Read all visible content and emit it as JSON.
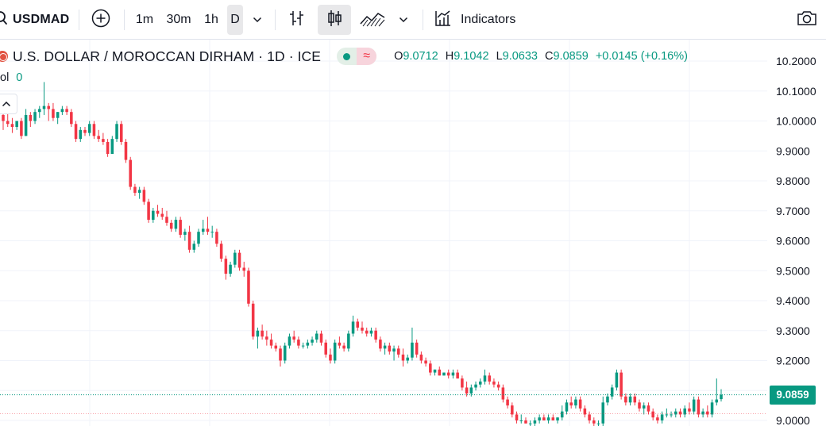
{
  "toolbar": {
    "symbol": "USDMAD",
    "intervals": [
      "1m",
      "30m",
      "1h",
      "D"
    ],
    "active_interval": "D",
    "indicators_label": "Indicators"
  },
  "legend": {
    "title": "U.S. DOLLAR / MOROCCAN DIRHAM · 1D · ICE",
    "status_icon": "≈",
    "open_key": "O",
    "open": "9.0712",
    "high_key": "H",
    "high": "9.1042",
    "low_key": "L",
    "low": "9.0633",
    "close_key": "C",
    "close": "9.0859",
    "change": "+0.0145 (+0.16%)",
    "volume_label": "ol",
    "volume_value": "0"
  },
  "colors": {
    "up": "#089981",
    "down": "#f23645",
    "grid": "#f0f3fa",
    "accent": "#2962ff"
  },
  "price_axis": {
    "last_price_label": "9.0859",
    "ticks": [
      "10.2000",
      "10.1000",
      "10.0000",
      "9.9000",
      "9.8000",
      "9.7000",
      "9.6000",
      "9.5000",
      "9.4000",
      "9.3000",
      "9.2000",
      "9.1000",
      "9.0000"
    ]
  },
  "chart_data": {
    "type": "candlestick",
    "y_range": [
      9.0,
      10.2
    ],
    "last_price": 9.0859,
    "candles": [
      [
        10.02,
        10.04,
        9.97,
        10.0
      ],
      [
        10.0,
        10.03,
        9.98,
        9.99
      ],
      [
        9.99,
        10.01,
        9.96,
        9.98
      ],
      [
        9.98,
        10.0,
        9.97,
        10.0
      ],
      [
        10.0,
        10.01,
        9.94,
        9.95
      ],
      [
        9.95,
        10.04,
        9.95,
        10.02
      ],
      [
        10.02,
        10.03,
        9.98,
        10.0
      ],
      [
        10.0,
        10.04,
        9.99,
        10.03
      ],
      [
        10.03,
        10.05,
        10.01,
        10.04
      ],
      [
        10.04,
        10.13,
        10.02,
        10.05
      ],
      [
        10.05,
        10.06,
        10.0,
        10.04
      ],
      [
        10.04,
        10.06,
        10.0,
        10.01
      ],
      [
        10.01,
        10.03,
        9.99,
        10.03
      ],
      [
        10.03,
        10.05,
        10.02,
        10.04
      ],
      [
        10.04,
        10.05,
        10.02,
        10.03
      ],
      [
        10.03,
        10.04,
        9.98,
        9.99
      ],
      [
        9.99,
        10.0,
        9.93,
        9.94
      ],
      [
        9.94,
        9.98,
        9.93,
        9.97
      ],
      [
        9.97,
        9.98,
        9.95,
        9.96
      ],
      [
        9.96,
        10.0,
        9.95,
        9.99
      ],
      [
        9.99,
        10.0,
        9.94,
        9.95
      ],
      [
        9.95,
        9.97,
        9.93,
        9.94
      ],
      [
        9.94,
        9.96,
        9.92,
        9.93
      ],
      [
        9.93,
        9.94,
        9.88,
        9.89
      ],
      [
        9.89,
        9.95,
        9.89,
        9.94
      ],
      [
        9.94,
        10.0,
        9.93,
        9.99
      ],
      [
        9.99,
        10.0,
        9.92,
        9.93
      ],
      [
        9.93,
        9.94,
        9.86,
        9.87
      ],
      [
        9.87,
        9.88,
        9.77,
        9.78
      ],
      [
        9.78,
        9.79,
        9.75,
        9.76
      ],
      [
        9.76,
        9.78,
        9.74,
        9.77
      ],
      [
        9.77,
        9.78,
        9.72,
        9.73
      ],
      [
        9.73,
        9.74,
        9.66,
        9.67
      ],
      [
        9.67,
        9.71,
        9.66,
        9.7
      ],
      [
        9.7,
        9.72,
        9.68,
        9.69
      ],
      [
        9.69,
        9.71,
        9.67,
        9.68
      ],
      [
        9.68,
        9.7,
        9.65,
        9.66
      ],
      [
        9.66,
        9.67,
        9.63,
        9.64
      ],
      [
        9.64,
        9.68,
        9.63,
        9.67
      ],
      [
        9.67,
        9.68,
        9.61,
        9.62
      ],
      [
        9.62,
        9.64,
        9.6,
        9.63
      ],
      [
        9.63,
        9.65,
        9.56,
        9.57
      ],
      [
        9.57,
        9.6,
        9.56,
        9.59
      ],
      [
        9.59,
        9.64,
        9.58,
        9.63
      ],
      [
        9.63,
        9.67,
        9.62,
        9.64
      ],
      [
        9.64,
        9.68,
        9.62,
        9.63
      ],
      [
        9.63,
        9.65,
        9.61,
        9.63
      ],
      [
        9.63,
        9.64,
        9.58,
        9.59
      ],
      [
        9.59,
        9.6,
        9.53,
        9.54
      ],
      [
        9.54,
        9.55,
        9.47,
        9.49
      ],
      [
        9.49,
        9.53,
        9.48,
        9.52
      ],
      [
        9.52,
        9.57,
        9.51,
        9.56
      ],
      [
        9.56,
        9.57,
        9.5,
        9.51
      ],
      [
        9.51,
        9.53,
        9.48,
        9.5
      ],
      [
        9.5,
        9.51,
        9.38,
        9.39
      ],
      [
        9.39,
        9.4,
        9.27,
        9.28
      ],
      [
        9.28,
        9.31,
        9.24,
        9.3
      ],
      [
        9.3,
        9.32,
        9.27,
        9.28
      ],
      [
        9.28,
        9.3,
        9.25,
        9.27
      ],
      [
        9.27,
        9.29,
        9.24,
        9.25
      ],
      [
        9.25,
        9.26,
        9.23,
        9.24
      ],
      [
        9.24,
        9.25,
        9.18,
        9.2
      ],
      [
        9.2,
        9.26,
        9.19,
        9.25
      ],
      [
        9.25,
        9.29,
        9.24,
        9.28
      ],
      [
        9.28,
        9.3,
        9.26,
        9.27
      ],
      [
        9.27,
        9.28,
        9.24,
        9.25
      ],
      [
        9.25,
        9.26,
        9.24,
        9.25
      ],
      [
        9.25,
        9.27,
        9.24,
        9.26
      ],
      [
        9.26,
        9.28,
        9.25,
        9.27
      ],
      [
        9.27,
        9.3,
        9.26,
        9.29
      ],
      [
        9.29,
        9.3,
        9.25,
        9.26
      ],
      [
        9.26,
        9.27,
        9.21,
        9.22
      ],
      [
        9.22,
        9.24,
        9.19,
        9.2
      ],
      [
        9.2,
        9.27,
        9.19,
        9.26
      ],
      [
        9.26,
        9.28,
        9.24,
        9.25
      ],
      [
        9.25,
        9.26,
        9.23,
        9.24
      ],
      [
        9.24,
        9.3,
        9.23,
        9.29
      ],
      [
        9.29,
        9.35,
        9.28,
        9.33
      ],
      [
        9.33,
        9.34,
        9.3,
        9.31
      ],
      [
        9.31,
        9.33,
        9.29,
        9.3
      ],
      [
        9.3,
        9.31,
        9.28,
        9.29
      ],
      [
        9.29,
        9.31,
        9.28,
        9.3
      ],
      [
        9.3,
        9.31,
        9.26,
        9.27
      ],
      [
        9.27,
        9.28,
        9.23,
        9.24
      ],
      [
        9.24,
        9.26,
        9.22,
        9.25
      ],
      [
        9.25,
        9.26,
        9.22,
        9.23
      ],
      [
        9.23,
        9.25,
        9.2,
        9.24
      ],
      [
        9.24,
        9.25,
        9.21,
        9.22
      ],
      [
        9.22,
        9.24,
        9.18,
        9.2
      ],
      [
        9.2,
        9.22,
        9.19,
        9.21
      ],
      [
        9.21,
        9.31,
        9.2,
        9.26
      ],
      [
        9.26,
        9.27,
        9.21,
        9.22
      ],
      [
        9.22,
        9.23,
        9.19,
        9.2
      ],
      [
        9.2,
        9.21,
        9.18,
        9.19
      ],
      [
        9.19,
        9.2,
        9.15,
        9.16
      ],
      [
        9.16,
        9.17,
        9.15,
        9.17
      ],
      [
        9.17,
        9.18,
        9.15,
        9.15
      ],
      [
        9.15,
        9.16,
        9.15,
        9.16
      ],
      [
        9.16,
        9.17,
        9.14,
        9.15
      ],
      [
        9.15,
        9.17,
        9.14,
        9.16
      ],
      [
        9.16,
        9.17,
        9.14,
        9.14
      ],
      [
        9.14,
        9.15,
        9.1,
        9.11
      ],
      [
        9.11,
        9.13,
        9.08,
        9.09
      ],
      [
        9.09,
        9.12,
        9.08,
        9.11
      ],
      [
        9.11,
        9.13,
        9.1,
        9.12
      ],
      [
        9.12,
        9.14,
        9.11,
        9.13
      ],
      [
        9.13,
        9.17,
        9.12,
        9.15
      ],
      [
        9.15,
        9.16,
        9.12,
        9.13
      ],
      [
        9.13,
        9.14,
        9.11,
        9.12
      ],
      [
        9.12,
        9.13,
        9.1,
        9.11
      ],
      [
        9.11,
        9.12,
        9.06,
        9.07
      ],
      [
        9.07,
        9.08,
        9.04,
        9.05
      ],
      [
        9.05,
        9.06,
        9.01,
        9.02
      ],
      [
        9.02,
        9.03,
        8.99,
        9.0
      ],
      [
        9.0,
        9.02,
        8.99,
        9.0
      ],
      [
        9.0,
        9.01,
        8.99,
        8.99
      ],
      [
        8.99,
        9.0,
        8.98,
        8.99
      ],
      [
        8.99,
        9.01,
        8.98,
        9.0
      ],
      [
        9.0,
        9.02,
        8.99,
        9.01
      ],
      [
        9.01,
        9.02,
        9.0,
        9.0
      ],
      [
        9.0,
        9.02,
        8.99,
        9.01
      ],
      [
        9.01,
        9.02,
        9.0,
        9.0
      ],
      [
        9.0,
        9.01,
        8.99,
        9.01
      ],
      [
        9.01,
        9.05,
        9.0,
        9.03
      ],
      [
        9.03,
        9.07,
        9.02,
        9.06
      ],
      [
        9.06,
        9.08,
        9.04,
        9.05
      ],
      [
        9.05,
        9.08,
        9.04,
        9.07
      ],
      [
        9.07,
        9.08,
        9.03,
        9.04
      ],
      [
        9.04,
        9.05,
        9.01,
        9.02
      ],
      [
        9.02,
        9.03,
        8.99,
        9.0
      ],
      [
        9.0,
        9.01,
        8.98,
        8.99
      ],
      [
        8.99,
        9.0,
        8.98,
        8.99
      ],
      [
        8.99,
        9.08,
        8.98,
        9.06
      ],
      [
        9.06,
        9.09,
        9.05,
        9.08
      ],
      [
        9.08,
        9.12,
        9.07,
        9.11
      ],
      [
        9.11,
        9.17,
        9.1,
        9.16
      ],
      [
        9.16,
        9.17,
        9.07,
        9.08
      ],
      [
        9.08,
        9.09,
        9.05,
        9.06
      ],
      [
        9.06,
        9.09,
        9.05,
        9.08
      ],
      [
        9.08,
        9.09,
        9.05,
        9.06
      ],
      [
        9.06,
        9.07,
        9.03,
        9.04
      ],
      [
        9.04,
        9.06,
        9.02,
        9.05
      ],
      [
        9.05,
        9.06,
        9.02,
        9.03
      ],
      [
        9.03,
        9.04,
        9.0,
        9.01
      ],
      [
        9.01,
        9.02,
        8.99,
        9.0
      ],
      [
        9.0,
        9.03,
        8.99,
        9.02
      ],
      [
        9.02,
        9.04,
        9.01,
        9.02
      ],
      [
        9.02,
        9.03,
        9.01,
        9.02
      ],
      [
        9.02,
        9.04,
        9.01,
        9.03
      ],
      [
        9.03,
        9.04,
        9.01,
        9.02
      ],
      [
        9.02,
        9.05,
        9.01,
        9.04
      ],
      [
        9.04,
        9.06,
        9.02,
        9.03
      ],
      [
        9.03,
        9.08,
        9.02,
        9.07
      ],
      [
        9.07,
        9.08,
        9.01,
        9.02
      ],
      [
        9.02,
        9.04,
        9.01,
        9.03
      ],
      [
        9.03,
        9.05,
        9.01,
        9.02
      ],
      [
        9.02,
        9.07,
        9.01,
        9.06
      ],
      [
        9.06,
        9.14,
        9.05,
        9.07
      ],
      [
        9.0712,
        9.1042,
        9.0633,
        9.0859
      ]
    ]
  }
}
